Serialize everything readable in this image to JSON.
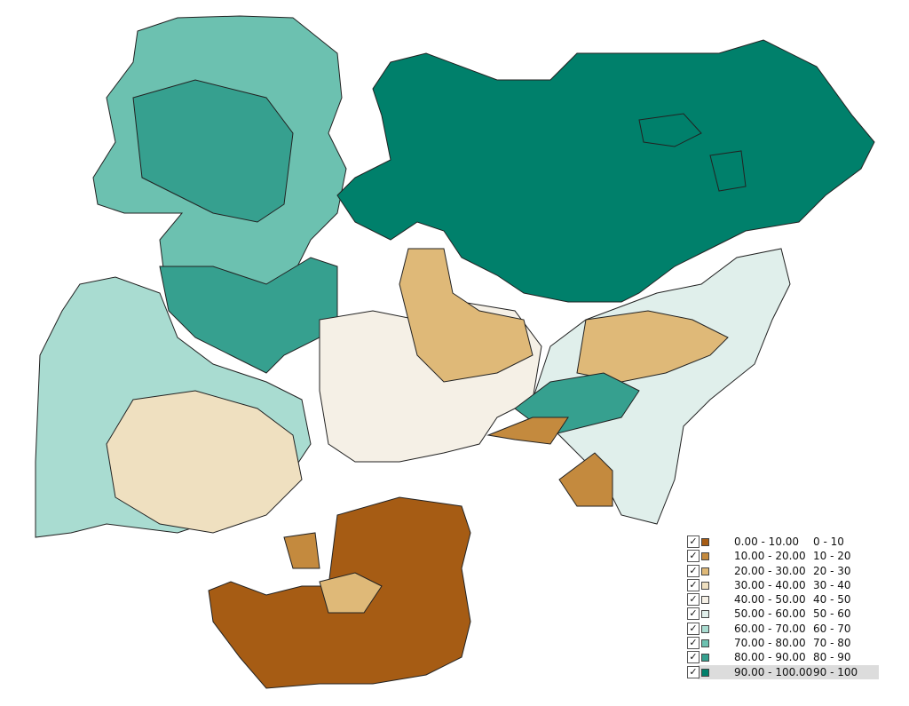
{
  "legend": {
    "items": [
      {
        "range": "0.00 - 10.00",
        "label": "0 - 10",
        "color": "#a65c14"
      },
      {
        "range": "10.00 - 20.00",
        "label": "10 - 20",
        "color": "#c48a3e"
      },
      {
        "range": "20.00 - 30.00",
        "label": "20 - 30",
        "color": "#dfb978"
      },
      {
        "range": "30.00 - 40.00",
        "label": "30 - 40",
        "color": "#efe0c0"
      },
      {
        "range": "40.00 - 50.00",
        "label": "40 - 50",
        "color": "#f5f0e6"
      },
      {
        "range": "50.00 - 60.00",
        "label": "50 - 60",
        "color": "#e0efeb"
      },
      {
        "range": "60.00 - 70.00",
        "label": "60 - 70",
        "color": "#a9dcd1"
      },
      {
        "range": "70.00 - 80.00",
        "label": "70 - 80",
        "color": "#6cc1b0"
      },
      {
        "range": "80.00 - 90.00",
        "label": "80 - 90",
        "color": "#36a08f"
      },
      {
        "range": "90.00 - 100.00",
        "label": "90 - 100",
        "color": "#00806b"
      }
    ]
  }
}
